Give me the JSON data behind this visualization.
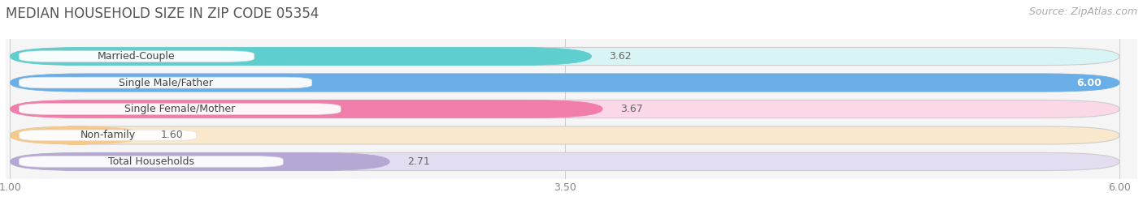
{
  "title": "MEDIAN HOUSEHOLD SIZE IN ZIP CODE 05354",
  "source": "Source: ZipAtlas.com",
  "categories": [
    "Married-Couple",
    "Single Male/Father",
    "Single Female/Mother",
    "Non-family",
    "Total Households"
  ],
  "values": [
    3.62,
    6.0,
    3.67,
    1.6,
    2.71
  ],
  "bar_colors": [
    "#5ECECE",
    "#6AAEE8",
    "#F07DAA",
    "#F5C98A",
    "#B5A8D5"
  ],
  "bar_bg_colors": [
    "#D8F4F4",
    "#D8EAF8",
    "#FAD8E8",
    "#FAE8CC",
    "#E4DCF0"
  ],
  "xmin": 1.0,
  "xmax": 6.0,
  "xticks": [
    1.0,
    3.5,
    6.0
  ],
  "xtick_labels": [
    "1.00",
    "3.50",
    "6.00"
  ],
  "background_color": "#ffffff",
  "plot_bg_color": "#f5f5f5",
  "title_fontsize": 12,
  "label_fontsize": 9,
  "value_fontsize": 9,
  "source_fontsize": 9
}
